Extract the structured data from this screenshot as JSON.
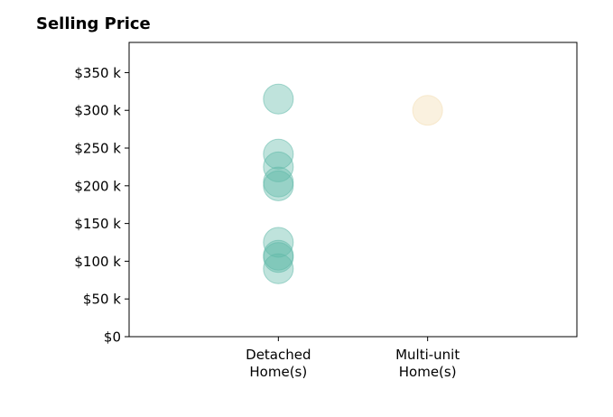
{
  "chart_data": {
    "type": "scatter",
    "title": "Selling Price",
    "xlabel": "",
    "ylabel": "",
    "categories": [
      [
        "Detached",
        "Home(s)"
      ],
      [
        "Multi-unit",
        "Home(s)"
      ]
    ],
    "x_range": [
      -1,
      2
    ],
    "y_range": [
      0,
      390000
    ],
    "yticks": [
      0,
      50000,
      100000,
      150000,
      200000,
      250000,
      300000,
      350000
    ],
    "ytick_labels": [
      "$0",
      "$50 k",
      "$100 k",
      "$150 k",
      "$200 k",
      "$250 k",
      "$300 k",
      "$350 k"
    ],
    "grid": false,
    "series": [
      {
        "color": "#5fb8a8",
        "category_index": 0,
        "values": [
          315000,
          242000,
          225000,
          205000,
          200000,
          125000,
          108000,
          105000,
          90000
        ]
      },
      {
        "color": "#f3ddb0",
        "category_index": 1,
        "values": [
          300000
        ]
      }
    ]
  }
}
